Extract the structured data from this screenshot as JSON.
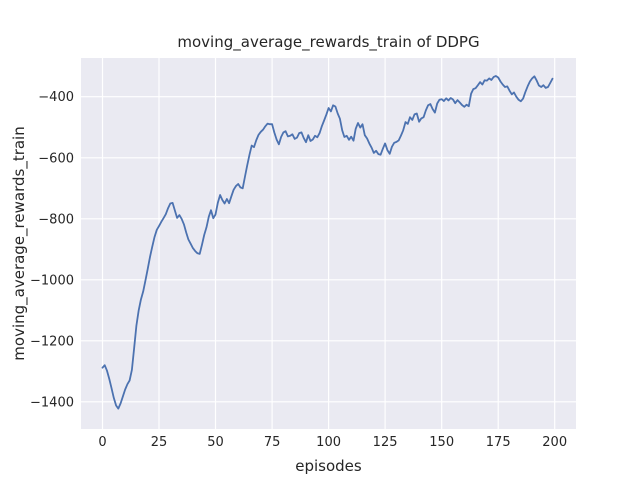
{
  "chart_data": {
    "type": "line",
    "title": "moving_average_rewards_train of DDPG",
    "xlabel": "episodes",
    "ylabel": "moving_average_rewards_train",
    "x_start": 0,
    "x_step": 1,
    "values": [
      -1288,
      -1280,
      -1298,
      -1325,
      -1355,
      -1387,
      -1412,
      -1422,
      -1405,
      -1383,
      -1360,
      -1342,
      -1330,
      -1295,
      -1225,
      -1150,
      -1100,
      -1065,
      -1038,
      -1003,
      -965,
      -925,
      -892,
      -860,
      -836,
      -824,
      -810,
      -798,
      -785,
      -765,
      -750,
      -748,
      -772,
      -797,
      -788,
      -800,
      -818,
      -845,
      -868,
      -882,
      -896,
      -906,
      -913,
      -915,
      -885,
      -853,
      -828,
      -793,
      -772,
      -798,
      -786,
      -748,
      -722,
      -738,
      -750,
      -735,
      -749,
      -726,
      -705,
      -693,
      -686,
      -697,
      -700,
      -663,
      -625,
      -590,
      -560,
      -565,
      -542,
      -525,
      -515,
      -508,
      -497,
      -488,
      -490,
      -490,
      -517,
      -540,
      -556,
      -532,
      -517,
      -513,
      -530,
      -528,
      -523,
      -538,
      -534,
      -519,
      -517,
      -535,
      -549,
      -526,
      -545,
      -540,
      -528,
      -533,
      -519,
      -497,
      -478,
      -458,
      -437,
      -448,
      -428,
      -432,
      -455,
      -472,
      -510,
      -532,
      -528,
      -541,
      -531,
      -544,
      -505,
      -486,
      -501,
      -490,
      -526,
      -537,
      -553,
      -567,
      -584,
      -577,
      -588,
      -590,
      -570,
      -553,
      -575,
      -587,
      -564,
      -551,
      -548,
      -543,
      -527,
      -510,
      -483,
      -489,
      -467,
      -476,
      -458,
      -455,
      -482,
      -471,
      -467,
      -445,
      -428,
      -424,
      -440,
      -452,
      -422,
      -410,
      -408,
      -414,
      -405,
      -412,
      -404,
      -409,
      -421,
      -411,
      -419,
      -427,
      -433,
      -426,
      -431,
      -390,
      -375,
      -372,
      -362,
      -352,
      -360,
      -346,
      -347,
      -340,
      -345,
      -335,
      -332,
      -337,
      -350,
      -360,
      -368,
      -366,
      -380,
      -392,
      -386,
      -400,
      -410,
      -415,
      -406,
      -385,
      -366,
      -350,
      -340,
      -333,
      -347,
      -363,
      -368,
      -362,
      -371,
      -368,
      -355,
      -341
    ],
    "x_ticks": [
      0,
      25,
      50,
      75,
      100,
      125,
      150,
      175,
      200
    ],
    "x_tick_labels": [
      "0",
      "25",
      "50",
      "75",
      "100",
      "125",
      "150",
      "175",
      "200"
    ],
    "y_ticks": [
      -400,
      -600,
      -800,
      -1000,
      -1200,
      -1400
    ],
    "y_tick_labels": [
      "−400",
      "−600",
      "−800",
      "−1000",
      "−1200",
      "−1400"
    ],
    "xlim": [
      -9.5,
      209.4
    ],
    "ylim": [
      -1489,
      -273
    ],
    "grid": true,
    "legend_position": "none",
    "style": {
      "line_color": "#4C72B0",
      "plot_bg": "#EAEAF2",
      "grid_color": "#FFFFFF",
      "figure_bg": "#FFFFFF",
      "text_color": "#262626"
    }
  }
}
